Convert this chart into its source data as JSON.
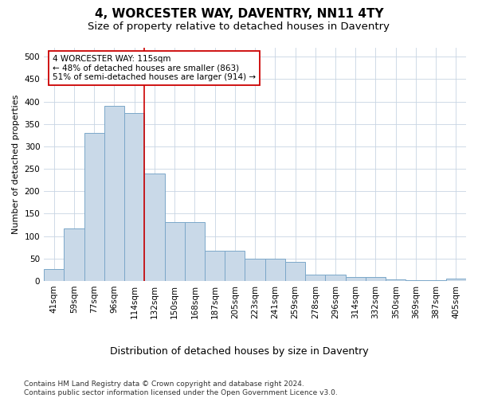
{
  "title1": "4, WORCESTER WAY, DAVENTRY, NN11 4TY",
  "title2": "Size of property relative to detached houses in Daventry",
  "xlabel": "Distribution of detached houses by size in Daventry",
  "ylabel": "Number of detached properties",
  "categories": [
    "41sqm",
    "59sqm",
    "77sqm",
    "96sqm",
    "114sqm",
    "132sqm",
    "150sqm",
    "168sqm",
    "187sqm",
    "205sqm",
    "223sqm",
    "241sqm",
    "259sqm",
    "278sqm",
    "296sqm",
    "314sqm",
    "332sqm",
    "350sqm",
    "369sqm",
    "387sqm",
    "405sqm"
  ],
  "values": [
    27,
    118,
    330,
    390,
    375,
    240,
    132,
    132,
    68,
    68,
    50,
    50,
    42,
    15,
    15,
    9,
    9,
    4,
    2,
    1,
    6
  ],
  "bar_color": "#c9d9e8",
  "bar_edge_color": "#7ba7c9",
  "property_line_color": "#cc0000",
  "annotation_text": "4 WORCESTER WAY: 115sqm\n← 48% of detached houses are smaller (863)\n51% of semi-detached houses are larger (914) →",
  "annotation_box_color": "#ffffff",
  "annotation_box_edge_color": "#cc0000",
  "ylim": [
    0,
    520
  ],
  "yticks": [
    0,
    50,
    100,
    150,
    200,
    250,
    300,
    350,
    400,
    450,
    500
  ],
  "footnote": "Contains HM Land Registry data © Crown copyright and database right 2024.\nContains public sector information licensed under the Open Government Licence v3.0.",
  "bg_color": "#ffffff",
  "grid_color": "#c8d4e3",
  "title1_fontsize": 11,
  "title2_fontsize": 9.5,
  "xlabel_fontsize": 9,
  "ylabel_fontsize": 8,
  "tick_fontsize": 7.5,
  "annotation_fontsize": 7.5,
  "footnote_fontsize": 6.5
}
